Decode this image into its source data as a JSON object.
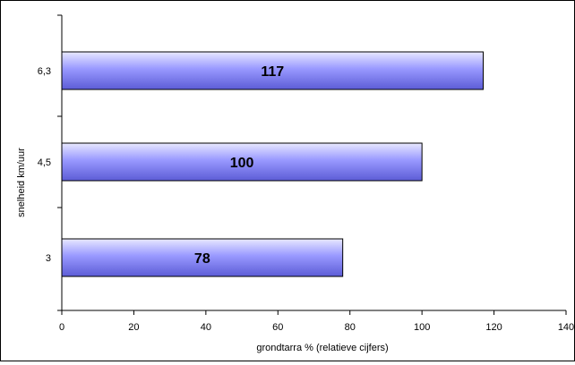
{
  "chart_data": {
    "type": "bar",
    "orientation": "horizontal",
    "categories": [
      "6,3",
      "4,5",
      "3"
    ],
    "values": [
      117,
      100,
      78
    ],
    "data_labels": [
      "117",
      "100",
      "78"
    ],
    "xlabel": "grondtarra % (relatieve cijfers)",
    "ylabel": "snelheid km/uur",
    "xlim": [
      0,
      140
    ],
    "xticks": [
      0,
      20,
      40,
      60,
      80,
      100,
      120,
      140
    ],
    "grid": false,
    "legend": "none",
    "colors": {
      "bar_fill_light": "#e8e8ff",
      "bar_fill_mid": "#9999ff",
      "bar_fill_dark": "#5c5cd6",
      "bar_stroke": "#000000",
      "axis": "#000000"
    }
  }
}
